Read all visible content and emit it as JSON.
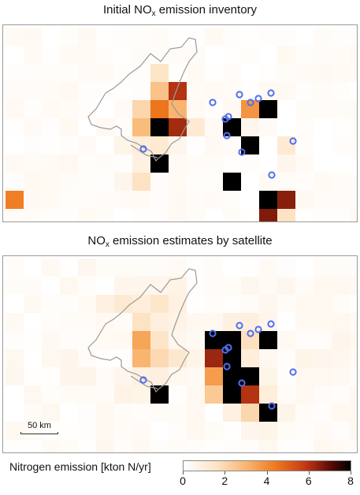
{
  "panels": {
    "top": {
      "title_main": "Initial NO",
      "title_sub": "x",
      "title_rest": " emission inventory"
    },
    "bottom": {
      "title_main": "NO",
      "title_sub": "x",
      "title_rest": " emission estimates by satellite"
    }
  },
  "scalebar": {
    "label": "50 km"
  },
  "colorbar": {
    "label": "Nitrogen emission [kton N/yr]",
    "min": 0,
    "max": 8,
    "ticks": [
      "0",
      "2",
      "4",
      "6",
      "8"
    ]
  },
  "colors": {
    "marker": "#4f6ff0",
    "outline": "#9a9a9a"
  }
}
